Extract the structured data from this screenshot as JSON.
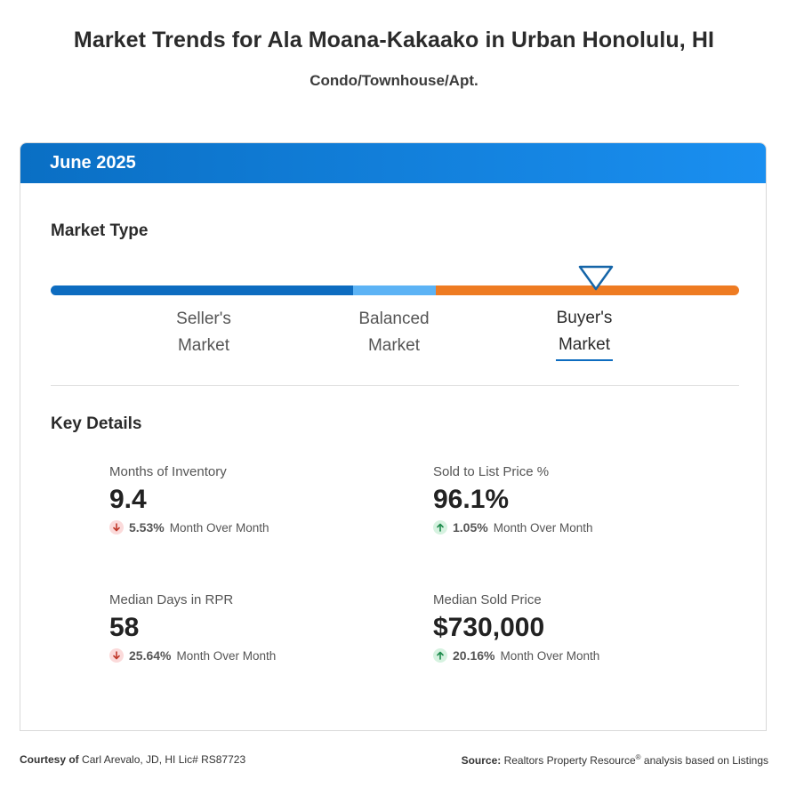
{
  "header": {
    "title": "Market Trends for Ala Moana-Kakaako in Urban Honolulu, HI",
    "subtitle": "Condo/Townhouse/Apt."
  },
  "card": {
    "period": "June 2025",
    "market_type": {
      "heading": "Market Type",
      "labels": [
        {
          "line1": "Seller's",
          "line2": "Market"
        },
        {
          "line1": "Balanced",
          "line2": "Market"
        },
        {
          "line1": "Buyer's",
          "line2": "Market"
        }
      ],
      "selected": "Buyer's Market",
      "colors": {
        "seller": "#0d6cc0",
        "balanced": "#5cb3f5",
        "buyer": "#ee7b22"
      }
    },
    "key_details": {
      "heading": "Key Details",
      "stats": [
        {
          "label": "Months of Inventory",
          "value": "9.4",
          "change": "5.53%",
          "direction": "down",
          "period": "Month Over Month"
        },
        {
          "label": "Sold to List Price %",
          "value": "96.1%",
          "change": "1.05%",
          "direction": "up",
          "period": "Month Over Month"
        },
        {
          "label": "Median Days in RPR",
          "value": "58",
          "change": "25.64%",
          "direction": "down",
          "period": "Month Over Month"
        },
        {
          "label": "Median Sold Price",
          "value": "$730,000",
          "change": "20.16%",
          "direction": "up",
          "period": "Month Over Month"
        }
      ]
    }
  },
  "footer": {
    "courtesy_label": "Courtesy of",
    "courtesy_text": "Carl Arevalo, JD, HI Lic# RS87723",
    "source_label": "Source:",
    "source_text_before": "Realtors Property Resource",
    "source_reg": "®",
    "source_text_after": "analysis based on Listings"
  }
}
